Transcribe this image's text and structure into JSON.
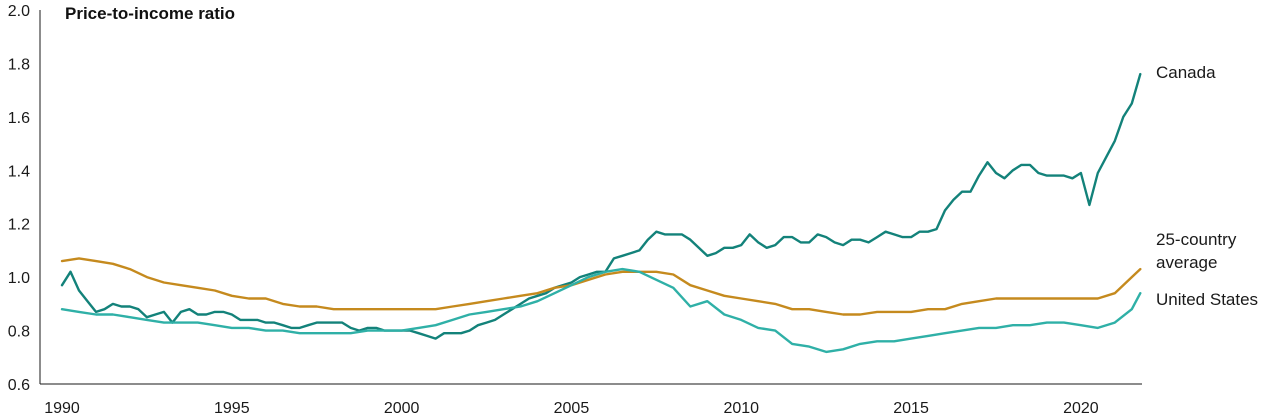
{
  "chart_data": {
    "type": "line",
    "title": "Price-to-income ratio",
    "xlabel": "",
    "ylabel": "",
    "xlim": [
      1990,
      2021.8
    ],
    "ylim": [
      0.6,
      2.0
    ],
    "x_ticks": [
      "1990",
      "1995",
      "2000",
      "2005",
      "2010",
      "2015",
      "2020"
    ],
    "y_ticks": [
      "0.6",
      "0.8",
      "1.0",
      "1.2",
      "1.4",
      "1.6",
      "1.8",
      "2.0"
    ],
    "grid": false,
    "legend": "direct labels at line ends",
    "series": [
      {
        "name": "Canada",
        "color": "#13827a",
        "x": [
          1990.0,
          1990.25,
          1990.5,
          1990.75,
          1991.0,
          1991.25,
          1991.5,
          1991.75,
          1992.0,
          1992.25,
          1992.5,
          1992.75,
          1993.0,
          1993.25,
          1993.5,
          1993.75,
          1994.0,
          1994.25,
          1994.5,
          1994.75,
          1995.0,
          1995.25,
          1995.5,
          1995.75,
          1996.0,
          1996.25,
          1996.5,
          1996.75,
          1997.0,
          1997.25,
          1997.5,
          1997.75,
          1998.0,
          1998.25,
          1998.5,
          1998.75,
          1999.0,
          1999.25,
          1999.5,
          1999.75,
          2000.0,
          2000.25,
          2000.5,
          2000.75,
          2001.0,
          2001.25,
          2001.5,
          2001.75,
          2002.0,
          2002.25,
          2002.5,
          2002.75,
          2003.0,
          2003.25,
          2003.5,
          2003.75,
          2004.0,
          2004.25,
          2004.5,
          2004.75,
          2005.0,
          2005.25,
          2005.5,
          2005.75,
          2006.0,
          2006.25,
          2006.5,
          2006.75,
          2007.0,
          2007.25,
          2007.5,
          2007.75,
          2008.0,
          2008.25,
          2008.5,
          2008.75,
          2009.0,
          2009.25,
          2009.5,
          2009.75,
          2010.0,
          2010.25,
          2010.5,
          2010.75,
          2011.0,
          2011.25,
          2011.5,
          2011.75,
          2012.0,
          2012.25,
          2012.5,
          2012.75,
          2013.0,
          2013.25,
          2013.5,
          2013.75,
          2014.0,
          2014.25,
          2014.5,
          2014.75,
          2015.0,
          2015.25,
          2015.5,
          2015.75,
          2016.0,
          2016.25,
          2016.5,
          2016.75,
          2017.0,
          2017.25,
          2017.5,
          2017.75,
          2018.0,
          2018.25,
          2018.5,
          2018.75,
          2019.0,
          2019.25,
          2019.5,
          2019.75,
          2020.0,
          2020.25,
          2020.5,
          2020.75,
          2021.0,
          2021.25,
          2021.5,
          2021.75
        ],
        "y": [
          0.97,
          1.02,
          0.95,
          0.91,
          0.87,
          0.88,
          0.9,
          0.89,
          0.89,
          0.88,
          0.85,
          0.86,
          0.87,
          0.83,
          0.87,
          0.88,
          0.86,
          0.86,
          0.87,
          0.87,
          0.86,
          0.84,
          0.84,
          0.84,
          0.83,
          0.83,
          0.82,
          0.81,
          0.81,
          0.82,
          0.83,
          0.83,
          0.83,
          0.83,
          0.81,
          0.8,
          0.81,
          0.81,
          0.8,
          0.8,
          0.8,
          0.8,
          0.79,
          0.78,
          0.77,
          0.79,
          0.79,
          0.79,
          0.8,
          0.82,
          0.83,
          0.84,
          0.86,
          0.88,
          0.9,
          0.92,
          0.93,
          0.94,
          0.96,
          0.97,
          0.98,
          1.0,
          1.01,
          1.02,
          1.02,
          1.07,
          1.08,
          1.09,
          1.1,
          1.14,
          1.17,
          1.16,
          1.16,
          1.16,
          1.14,
          1.11,
          1.08,
          1.09,
          1.11,
          1.11,
          1.12,
          1.16,
          1.13,
          1.11,
          1.12,
          1.15,
          1.15,
          1.13,
          1.13,
          1.16,
          1.15,
          1.13,
          1.12,
          1.14,
          1.14,
          1.13,
          1.15,
          1.17,
          1.16,
          1.15,
          1.15,
          1.17,
          1.17,
          1.18,
          1.25,
          1.29,
          1.32,
          1.32,
          1.38,
          1.43,
          1.39,
          1.37,
          1.4,
          1.42,
          1.42,
          1.39,
          1.38,
          1.38,
          1.38,
          1.37,
          1.39,
          1.27,
          1.39,
          1.45,
          1.51,
          1.6,
          1.65,
          1.76
        ]
      },
      {
        "name": "25-country average",
        "color": "#c58a1e",
        "x": [
          1990.0,
          1990.5,
          1991.0,
          1991.5,
          1992.0,
          1992.5,
          1993.0,
          1993.5,
          1994.0,
          1994.5,
          1995.0,
          1995.5,
          1996.0,
          1996.5,
          1997.0,
          1997.5,
          1998.0,
          1998.5,
          1999.0,
          1999.5,
          2000.0,
          2000.5,
          2001.0,
          2001.5,
          2002.0,
          2002.5,
          2003.0,
          2003.5,
          2004.0,
          2004.5,
          2005.0,
          2005.5,
          2006.0,
          2006.5,
          2007.0,
          2007.5,
          2008.0,
          2008.5,
          2009.0,
          2009.5,
          2010.0,
          2010.5,
          2011.0,
          2011.5,
          2012.0,
          2012.5,
          2013.0,
          2013.5,
          2014.0,
          2014.5,
          2015.0,
          2015.5,
          2016.0,
          2016.5,
          2017.0,
          2017.5,
          2018.0,
          2018.5,
          2019.0,
          2019.5,
          2020.0,
          2020.5,
          2021.0,
          2021.5,
          2021.75
        ],
        "y": [
          1.06,
          1.07,
          1.06,
          1.05,
          1.03,
          1.0,
          0.98,
          0.97,
          0.96,
          0.95,
          0.93,
          0.92,
          0.92,
          0.9,
          0.89,
          0.89,
          0.88,
          0.88,
          0.88,
          0.88,
          0.88,
          0.88,
          0.88,
          0.89,
          0.9,
          0.91,
          0.92,
          0.93,
          0.94,
          0.96,
          0.97,
          0.99,
          1.01,
          1.02,
          1.02,
          1.02,
          1.01,
          0.97,
          0.95,
          0.93,
          0.92,
          0.91,
          0.9,
          0.88,
          0.88,
          0.87,
          0.86,
          0.86,
          0.87,
          0.87,
          0.87,
          0.88,
          0.88,
          0.9,
          0.91,
          0.92,
          0.92,
          0.92,
          0.92,
          0.92,
          0.92,
          0.92,
          0.94,
          1.0,
          1.03
        ]
      },
      {
        "name": "United States",
        "color": "#2fb0a7",
        "x": [
          1990.0,
          1990.5,
          1991.0,
          1991.5,
          1992.0,
          1992.5,
          1993.0,
          1993.5,
          1994.0,
          1994.5,
          1995.0,
          1995.5,
          1996.0,
          1996.5,
          1997.0,
          1997.5,
          1998.0,
          1998.5,
          1999.0,
          1999.5,
          2000.0,
          2000.5,
          2001.0,
          2001.5,
          2002.0,
          2002.5,
          2003.0,
          2003.5,
          2004.0,
          2004.5,
          2005.0,
          2005.5,
          2006.0,
          2006.5,
          2007.0,
          2007.5,
          2008.0,
          2008.5,
          2009.0,
          2009.5,
          2010.0,
          2010.5,
          2011.0,
          2011.5,
          2012.0,
          2012.5,
          2013.0,
          2013.5,
          2014.0,
          2014.5,
          2015.0,
          2015.5,
          2016.0,
          2016.5,
          2017.0,
          2017.5,
          2018.0,
          2018.5,
          2019.0,
          2019.5,
          2020.0,
          2020.5,
          2021.0,
          2021.5,
          2021.75
        ],
        "y": [
          0.88,
          0.87,
          0.86,
          0.86,
          0.85,
          0.84,
          0.83,
          0.83,
          0.83,
          0.82,
          0.81,
          0.81,
          0.8,
          0.8,
          0.79,
          0.79,
          0.79,
          0.79,
          0.8,
          0.8,
          0.8,
          0.81,
          0.82,
          0.84,
          0.86,
          0.87,
          0.88,
          0.89,
          0.91,
          0.94,
          0.97,
          1.0,
          1.02,
          1.03,
          1.02,
          0.99,
          0.96,
          0.89,
          0.91,
          0.86,
          0.84,
          0.81,
          0.8,
          0.75,
          0.74,
          0.72,
          0.73,
          0.75,
          0.76,
          0.76,
          0.77,
          0.78,
          0.79,
          0.8,
          0.81,
          0.81,
          0.82,
          0.82,
          0.83,
          0.83,
          0.82,
          0.81,
          0.83,
          0.88,
          0.94
        ]
      }
    ],
    "series_labels": [
      "Canada",
      "25-country",
      "average",
      "United States"
    ]
  }
}
